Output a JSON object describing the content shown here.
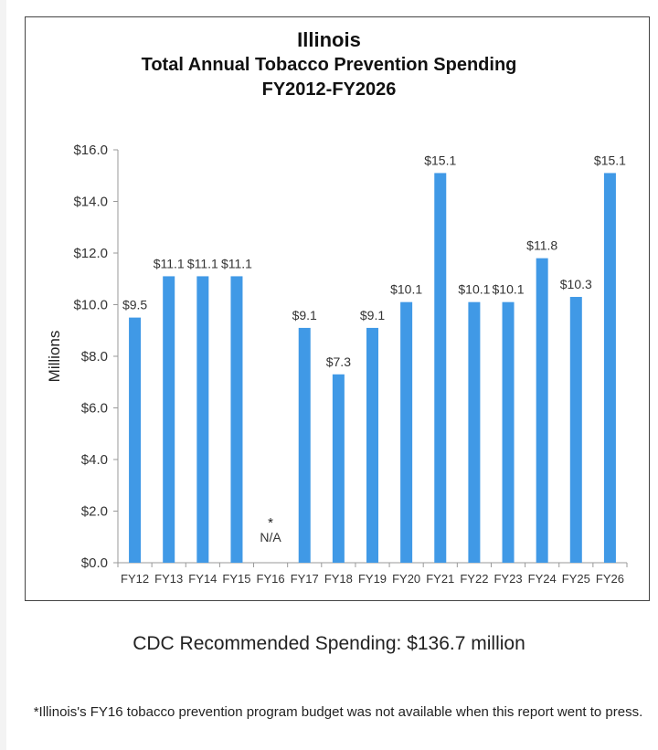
{
  "chart_data": {
    "type": "bar",
    "title": "Illinois",
    "subtitle": "Total Annual Tobacco Prevention Spending",
    "subtitle2": "FY2012-FY2026",
    "xlabel": "",
    "ylabel": "Millions",
    "ylim": [
      0,
      16
    ],
    "yticks": [
      "$0.0",
      "$2.0",
      "$4.0",
      "$6.0",
      "$8.0",
      "$10.0",
      "$12.0",
      "$14.0",
      "$16.0"
    ],
    "categories": [
      "FY12",
      "FY13",
      "FY14",
      "FY15",
      "FY16",
      "FY17",
      "FY18",
      "FY19",
      "FY20",
      "FY21",
      "FY22",
      "FY23",
      "FY24",
      "FY25",
      "FY26"
    ],
    "values": [
      9.5,
      11.1,
      11.1,
      11.1,
      null,
      9.1,
      7.3,
      9.1,
      10.1,
      15.1,
      10.1,
      10.1,
      11.8,
      10.3,
      15.1
    ],
    "data_labels": [
      "$9.5",
      "$11.1",
      "$11.1",
      "$11.1",
      "",
      "$9.1",
      "$7.3",
      "$9.1",
      "$10.1",
      "$15.1",
      "$10.1",
      "$10.1",
      "$11.8",
      "$10.3",
      "$15.1"
    ],
    "missing_marker": "*",
    "missing_label": "N/A",
    "grid": false,
    "bar_color": "#4099e6"
  },
  "cdc_recommended": "CDC Recommended Spending: $136.7 million",
  "footnote": "*Illinois's FY16 tobacco prevention program budget was not available when this report went to press."
}
